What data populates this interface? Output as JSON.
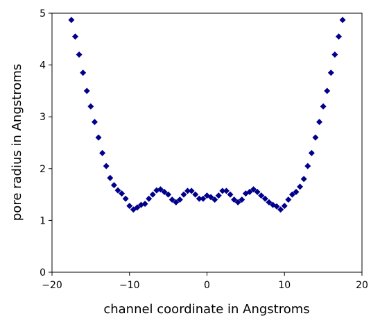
{
  "chart_data": {
    "type": "scatter",
    "x_label": "channel coordinate in Angstroms",
    "y_label": "pore radius in Angstroms",
    "color": "#00008b",
    "x": [
      -17.5,
      -17,
      -16.5,
      -16,
      -15.5,
      -15,
      -14.5,
      -14,
      -13.5,
      -13,
      -12.5,
      -12,
      -11.5,
      -11,
      -10.5,
      -10,
      -9.5,
      -9,
      -8.5,
      -8,
      -7.5,
      -7,
      -6.5,
      -6,
      -5.5,
      -5,
      -4.5,
      -4,
      -3.5,
      -3,
      -2.5,
      -2,
      -1.5,
      -1,
      -0.5,
      0,
      0.5,
      1,
      1.5,
      2,
      2.5,
      3,
      3.5,
      4,
      4.5,
      5,
      5.5,
      6,
      6.5,
      7,
      7.5,
      8,
      8.5,
      9,
      9.5,
      10,
      10.5,
      11,
      11.5,
      12,
      12.5,
      13,
      13.5,
      14,
      14.5,
      15,
      15.5,
      16,
      16.5,
      17,
      17.5
    ],
    "values": [
      4.87,
      4.55,
      4.2,
      3.85,
      3.5,
      3.2,
      2.9,
      2.6,
      2.3,
      2.05,
      1.82,
      1.68,
      1.58,
      1.52,
      1.42,
      1.28,
      1.21,
      1.25,
      1.3,
      1.32,
      1.42,
      1.5,
      1.58,
      1.6,
      1.55,
      1.5,
      1.4,
      1.35,
      1.4,
      1.5,
      1.57,
      1.57,
      1.5,
      1.42,
      1.42,
      1.48,
      1.45,
      1.4,
      1.48,
      1.57,
      1.57,
      1.5,
      1.4,
      1.35,
      1.4,
      1.52,
      1.55,
      1.6,
      1.55,
      1.48,
      1.42,
      1.35,
      1.3,
      1.27,
      1.21,
      1.28,
      1.4,
      1.5,
      1.55,
      1.65,
      1.8,
      2.05,
      2.3,
      2.6,
      2.9,
      3.2,
      3.5,
      3.85,
      4.2,
      4.55,
      4.87
    ],
    "xlim": [
      -20,
      20
    ],
    "xticks": [
      {
        "value": -20,
        "label": "−20"
      },
      {
        "value": -10,
        "label": "−10"
      },
      0,
      10,
      20
    ],
    "ylim": [
      0,
      5
    ],
    "yticks": [
      0,
      1,
      2,
      3,
      4,
      5
    ]
  }
}
